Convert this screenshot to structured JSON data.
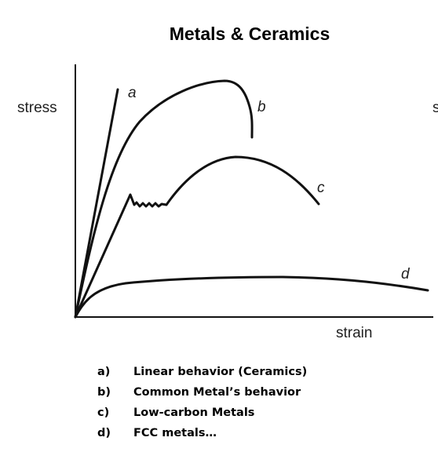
{
  "title": "Metals & Ceramics",
  "axes": {
    "y_label": "stress",
    "x_label": "strain",
    "clipped_label_fragment": "s"
  },
  "curves": [
    {
      "id": "a",
      "label": "a",
      "color": "#111111"
    },
    {
      "id": "b",
      "label": "b",
      "color": "#111111"
    },
    {
      "id": "c",
      "label": "c",
      "color": "#111111"
    },
    {
      "id": "d",
      "label": "d",
      "color": "#111111"
    }
  ],
  "legend": [
    {
      "marker": "a)",
      "text": "Linear behavior (Ceramics)"
    },
    {
      "marker": "b)",
      "text": "Common Metal’s behavior"
    },
    {
      "marker": "c)",
      "text": "Low-carbon Metals"
    },
    {
      "marker": "d)",
      "text": "FCC metals…"
    }
  ]
}
